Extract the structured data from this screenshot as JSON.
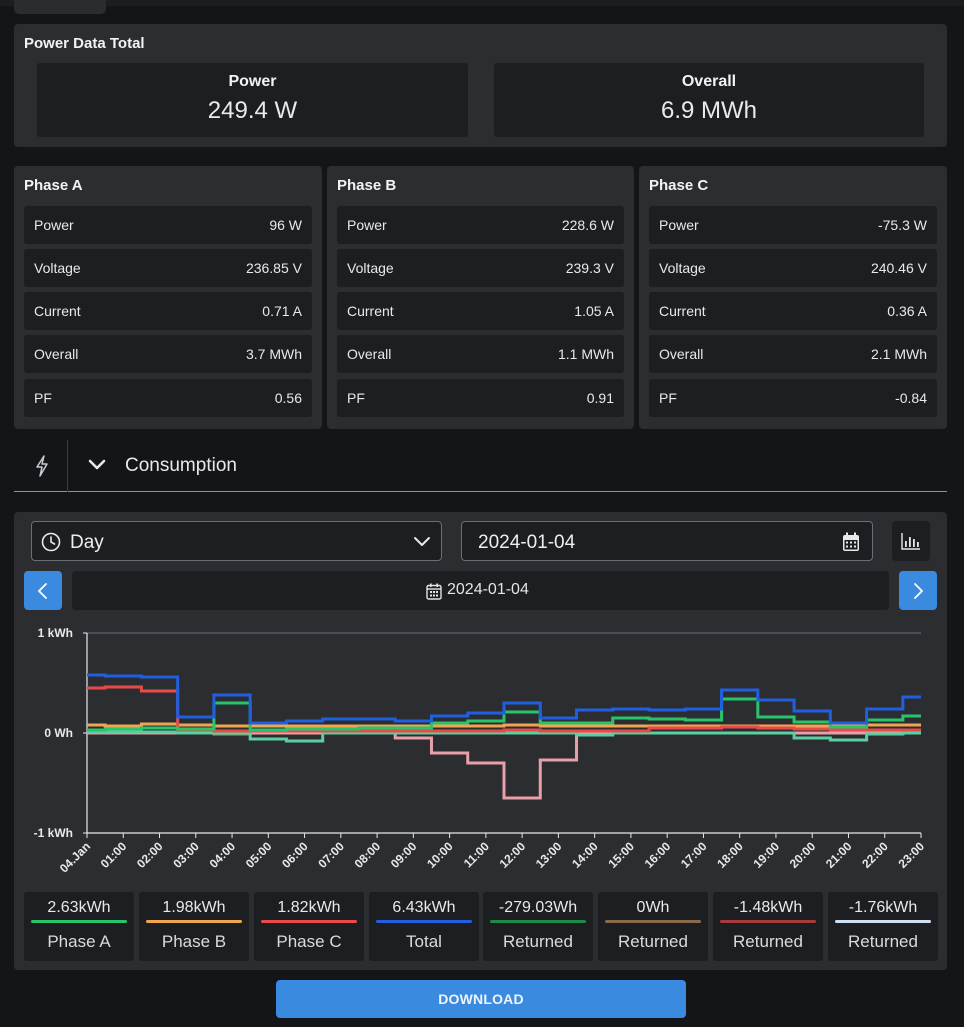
{
  "totals": {
    "title": "Power Data Total",
    "power_label": "Power",
    "power_value": "249.4 W",
    "overall_label": "Overall",
    "overall_value": "6.9 MWh"
  },
  "phases": [
    {
      "title": "Phase A",
      "rows": [
        {
          "label": "Power",
          "value": "96 W"
        },
        {
          "label": "Voltage",
          "value": "236.85 V"
        },
        {
          "label": "Current",
          "value": "0.71 A"
        },
        {
          "label": "Overall",
          "value": "3.7 MWh"
        },
        {
          "label": "PF",
          "value": "0.56"
        }
      ]
    },
    {
      "title": "Phase B",
      "rows": [
        {
          "label": "Power",
          "value": "228.6 W"
        },
        {
          "label": "Voltage",
          "value": "239.3 V"
        },
        {
          "label": "Current",
          "value": "1.05 A"
        },
        {
          "label": "Overall",
          "value": "1.1 MWh"
        },
        {
          "label": "PF",
          "value": "0.91"
        }
      ]
    },
    {
      "title": "Phase C",
      "rows": [
        {
          "label": "Power",
          "value": "-75.3 W"
        },
        {
          "label": "Voltage",
          "value": "240.46 V"
        },
        {
          "label": "Current",
          "value": "0.36 A"
        },
        {
          "label": "Overall",
          "value": "2.1 MWh"
        },
        {
          "label": "PF",
          "value": "-0.84"
        }
      ]
    }
  ],
  "section": {
    "icon": "bolt-icon",
    "label": "Consumption"
  },
  "controls": {
    "period_value": "Day",
    "date_value": "2024-01-04",
    "nav_date": "2024-01-04"
  },
  "chart_data": {
    "type": "line",
    "step": true,
    "y_ticks": [
      "1 kWh",
      "0 Wh",
      "-1 kWh"
    ],
    "ylim": [
      -1,
      1
    ],
    "y_unit": "kWh",
    "grid": "horizontal-top",
    "x_ticks": [
      "04.Jan",
      "01:00",
      "02:00",
      "03:00",
      "04:00",
      "05:00",
      "06:00",
      "07:00",
      "08:00",
      "09:00",
      "10:00",
      "11:00",
      "12:00",
      "13:00",
      "14:00",
      "15:00",
      "16:00",
      "17:00",
      "18:00",
      "19:00",
      "20:00",
      "21:00",
      "22:00",
      "23:00"
    ],
    "series": [
      {
        "color": "#1f5fe0",
        "values": [
          0.58,
          0.57,
          0.56,
          0.16,
          0.38,
          0.1,
          0.12,
          0.14,
          0.14,
          0.12,
          0.17,
          0.2,
          0.3,
          0.15,
          0.23,
          0.24,
          0.23,
          0.24,
          0.43,
          0.33,
          0.22,
          0.1,
          0.24,
          0.36
        ]
      },
      {
        "color": "#29c46a",
        "values": [
          0.03,
          0.04,
          0.05,
          0.04,
          0.3,
          0.03,
          0.04,
          0.04,
          0.05,
          0.05,
          0.1,
          0.12,
          0.21,
          0.1,
          0.1,
          0.15,
          0.14,
          0.13,
          0.34,
          0.16,
          0.11,
          0.06,
          0.13,
          0.17
        ]
      },
      {
        "color": "#f0a550",
        "values": [
          0.08,
          0.07,
          0.09,
          0.08,
          0.07,
          0.07,
          0.07,
          0.07,
          0.07,
          0.07,
          0.07,
          0.07,
          0.08,
          0.07,
          0.07,
          0.07,
          0.07,
          0.07,
          0.07,
          0.07,
          0.07,
          0.07,
          0.08,
          0.08
        ]
      },
      {
        "color": "#e84a4a",
        "values": [
          0.45,
          0.46,
          0.42,
          0.03,
          0.02,
          0.02,
          0.02,
          0.02,
          0.02,
          0.02,
          0.02,
          0.02,
          0.03,
          0.02,
          0.02,
          0.02,
          0.05,
          0.05,
          0.06,
          0.05,
          0.04,
          0.03,
          0.03,
          0.03
        ]
      },
      {
        "color": "#5ad0a0",
        "values": [
          0.01,
          0.01,
          0.01,
          0.0,
          0.0,
          -0.06,
          -0.08,
          0.0,
          0.0,
          0.0,
          0.0,
          0.0,
          0.0,
          0.0,
          -0.02,
          0.0,
          0.0,
          0.0,
          0.0,
          0.0,
          -0.05,
          -0.07,
          -0.01,
          0.0
        ]
      },
      {
        "color": "#e8a0a8",
        "values": [
          0.0,
          0.0,
          0.0,
          0.0,
          0.0,
          0.0,
          0.0,
          0.0,
          0.0,
          -0.05,
          -0.2,
          -0.3,
          -0.65,
          -0.27,
          0.0,
          0.0,
          0.0,
          0.0,
          0.0,
          0.0,
          0.0,
          0.0,
          0.0,
          0.0
        ]
      },
      {
        "color": "#9a9370",
        "values": [
          0.0,
          0.0,
          0.0,
          0.0,
          -0.01,
          0.0,
          0.0,
          0.0,
          0.0,
          0.0,
          0.0,
          0.0,
          0.0,
          0.0,
          0.0,
          0.0,
          0.0,
          0.0,
          0.0,
          0.0,
          0.0,
          0.0,
          0.0,
          0.0
        ]
      }
    ]
  },
  "legend": [
    {
      "value": "2.63kWh",
      "name": "Phase A",
      "color": "#29c46a"
    },
    {
      "value": "1.98kWh",
      "name": "Phase B",
      "color": "#f0a550"
    },
    {
      "value": "1.82kWh",
      "name": "Phase C",
      "color": "#e84a4a"
    },
    {
      "value": "6.43kWh",
      "name": "Total",
      "color": "#1f5fe0"
    },
    {
      "value": "-279.03Wh",
      "name": "Returned",
      "color": "#1f8a44"
    },
    {
      "value": "0Wh",
      "name": "Returned",
      "color": "#8a6a4a"
    },
    {
      "value": "-1.48kWh",
      "name": "Returned",
      "color": "#a83a3a"
    },
    {
      "value": "-1.76kWh",
      "name": "Returned",
      "color": "#cfe0f5"
    }
  ],
  "download_label": "DOWNLOAD"
}
